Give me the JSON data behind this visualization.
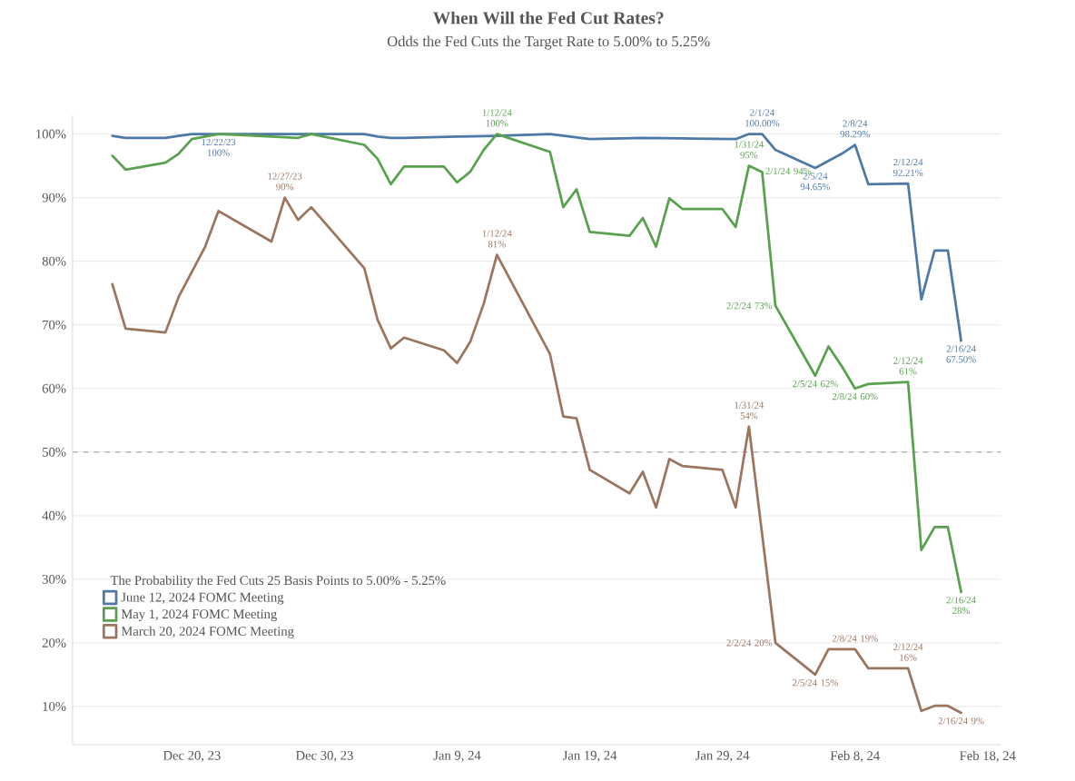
{
  "chart_data": {
    "type": "line",
    "title": "When Will the Fed Cut Rates?",
    "subtitle": "Odds the Fed Cuts the Target Rate to 5.00% to 5.25%",
    "legend_title": "The Probability the Fed Cuts 25 Basis Points to 5.00% - 5.25%",
    "legend": "bottom left",
    "grid": "y",
    "xlim": [
      "2023-12-11",
      "2024-02-19"
    ],
    "xticks": [
      {
        "value": "2023-12-20",
        "label": "Dec 20, 23"
      },
      {
        "value": "2023-12-30",
        "label": "Dec 30, 23"
      },
      {
        "value": "2024-01-09",
        "label": "Jan 9, 24"
      },
      {
        "value": "2024-01-19",
        "label": "Jan 19, 24"
      },
      {
        "value": "2024-01-29",
        "label": "Jan 29, 24"
      },
      {
        "value": "2024-02-08",
        "label": "Feb 8, 24"
      },
      {
        "value": "2024-02-18",
        "label": "Feb 18, 24"
      }
    ],
    "ylim": [
      4,
      103
    ],
    "yticks": [
      {
        "value": 10,
        "label": "10%"
      },
      {
        "value": 20,
        "label": "20%"
      },
      {
        "value": 30,
        "label": "30%"
      },
      {
        "value": 40,
        "label": "40%"
      },
      {
        "value": 50,
        "label": "50%"
      },
      {
        "value": 60,
        "label": "60%"
      },
      {
        "value": 70,
        "label": "70%"
      },
      {
        "value": 80,
        "label": "80%"
      },
      {
        "value": 90,
        "label": "90%"
      },
      {
        "value": 100,
        "label": "100%"
      }
    ],
    "ref_lines": [
      {
        "axis": "y",
        "value": 50,
        "color": "#b8b8b8",
        "line_style": "dashed"
      }
    ],
    "annotations": [
      {
        "text": "2/1/24 100.00%",
        "x": "2024-02-01",
        "y": 100
      },
      {
        "text": "2/5/24 94.65%",
        "x": "2024-02-05",
        "y": 94.65
      },
      {
        "text": "2/8/24 98.29%",
        "x": "2024-02-08",
        "y": 98.29
      },
      {
        "text": "2/12/24 92.21%",
        "x": "2024-02-12",
        "y": 92.21
      },
      {
        "text": "2/16/24 67.50%",
        "x": "2024-02-16",
        "y": 67.5
      },
      {
        "text": "12/22/23 100%",
        "x": "2023-12-22",
        "y": 100
      },
      {
        "text": "1/12/24 100%",
        "x": "2024-01-12",
        "y": 100
      },
      {
        "text": "1/31/24 95%",
        "x": "2024-01-31",
        "y": 95
      },
      {
        "text": "2/1/24 94%",
        "x": "2024-02-01",
        "y": 94
      },
      {
        "text": "2/2/24 73%",
        "x": "2024-02-02",
        "y": 73
      },
      {
        "text": "2/5/24 62%",
        "x": "2024-02-05",
        "y": 62
      },
      {
        "text": "2/8/24 60%",
        "x": "2024-02-08",
        "y": 60
      },
      {
        "text": "2/12/24 61%",
        "x": "2024-02-12",
        "y": 61
      },
      {
        "text": "2/16/24 28%",
        "x": "2024-02-16",
        "y": 28
      },
      {
        "text": "12/27/23 90%",
        "x": "2023-12-27",
        "y": 90
      },
      {
        "text": "1/12/24 81%",
        "x": "2024-01-12",
        "y": 81
      },
      {
        "text": "1/31/24 54%",
        "x": "2024-01-31",
        "y": 54
      },
      {
        "text": "2/2/24 20%",
        "x": "2024-02-02",
        "y": 20
      },
      {
        "text": "2/5/24 15%",
        "x": "2024-02-05",
        "y": 15
      },
      {
        "text": "2/8/24 19%",
        "x": "2024-02-08",
        "y": 19
      },
      {
        "text": "2/12/24 16%",
        "x": "2024-02-12",
        "y": 16
      },
      {
        "text": "2/16/24 9%",
        "x": "2024-02-16",
        "y": 9
      }
    ],
    "series": [
      {
        "name": "June 12, 2024 FOMC Meeting",
        "color": "#4e79a7",
        "x": [
          "2023-12-14",
          "2023-12-15",
          "2023-12-18",
          "2023-12-19",
          "2023-12-20",
          "2023-12-22",
          "2023-12-29",
          "2024-01-02",
          "2024-01-03",
          "2024-01-04",
          "2024-01-05",
          "2024-01-09",
          "2024-01-12",
          "2024-01-16",
          "2024-01-19",
          "2024-01-23",
          "2024-01-26",
          "2024-01-30",
          "2024-01-31",
          "2024-02-01",
          "2024-02-02",
          "2024-02-05",
          "2024-02-07",
          "2024-02-08",
          "2024-02-09",
          "2024-02-12",
          "2024-02-13",
          "2024-02-14",
          "2024-02-15",
          "2024-02-16"
        ],
        "values": [
          99.7,
          99.4,
          99.4,
          99.7,
          100,
          100,
          100,
          100,
          99.6,
          99.4,
          99.4,
          99.6,
          99.7,
          100,
          99.2,
          99.4,
          99.3,
          99.2,
          100,
          100,
          97.5,
          94.65,
          96.9,
          98.29,
          92.1,
          92.21,
          74,
          81.7,
          81.7,
          67.5
        ]
      },
      {
        "name": "May 1, 2024 FOMC Meeting",
        "color": "#59a14f",
        "x": [
          "2023-12-14",
          "2023-12-15",
          "2023-12-18",
          "2023-12-19",
          "2023-12-20",
          "2023-12-22",
          "2023-12-28",
          "2023-12-29",
          "2024-01-02",
          "2024-01-03",
          "2024-01-04",
          "2024-01-05",
          "2024-01-08",
          "2024-01-09",
          "2024-01-10",
          "2024-01-11",
          "2024-01-12",
          "2024-01-16",
          "2024-01-17",
          "2024-01-18",
          "2024-01-19",
          "2024-01-22",
          "2024-01-23",
          "2024-01-24",
          "2024-01-25",
          "2024-01-26",
          "2024-01-29",
          "2024-01-30",
          "2024-01-31",
          "2024-02-01",
          "2024-02-02",
          "2024-02-05",
          "2024-02-06",
          "2024-02-07",
          "2024-02-08",
          "2024-02-09",
          "2024-02-12",
          "2024-02-13",
          "2024-02-14",
          "2024-02-15",
          "2024-02-16"
        ],
        "values": [
          96.6,
          94.4,
          95.5,
          96.9,
          99.2,
          100,
          99.4,
          100,
          98.3,
          96.1,
          92.1,
          94.9,
          94.9,
          92.4,
          94.1,
          97.5,
          100,
          97.2,
          88.5,
          91.3,
          84.6,
          84.0,
          86.8,
          82.3,
          89.9,
          88.2,
          88.2,
          85.4,
          95,
          94,
          73,
          62,
          66.6,
          63.5,
          60,
          60.7,
          61,
          34.6,
          38.2,
          38.2,
          28
        ]
      },
      {
        "name": "March 20, 2024 FOMC Meeting",
        "color": "#9c755f",
        "x": [
          "2023-12-14",
          "2023-12-15",
          "2023-12-18",
          "2023-12-19",
          "2023-12-21",
          "2023-12-22",
          "2023-12-26",
          "2023-12-27",
          "2023-12-28",
          "2023-12-29",
          "2024-01-02",
          "2024-01-03",
          "2024-01-04",
          "2024-01-05",
          "2024-01-08",
          "2024-01-09",
          "2024-01-10",
          "2024-01-11",
          "2024-01-12",
          "2024-01-16",
          "2024-01-17",
          "2024-01-18",
          "2024-01-19",
          "2024-01-22",
          "2024-01-23",
          "2024-01-24",
          "2024-01-25",
          "2024-01-26",
          "2024-01-29",
          "2024-01-30",
          "2024-01-31",
          "2024-02-02",
          "2024-02-05",
          "2024-02-06",
          "2024-02-07",
          "2024-02-08",
          "2024-02-09",
          "2024-02-12",
          "2024-02-13",
          "2024-02-14",
          "2024-02-15",
          "2024-02-16"
        ],
        "values": [
          76.4,
          69.4,
          68.8,
          74.4,
          82.3,
          87.9,
          83.1,
          90,
          86.5,
          88.5,
          78.9,
          70.8,
          66.3,
          68.0,
          66.0,
          64.0,
          67.4,
          73.3,
          81,
          65.4,
          55.6,
          55.3,
          47.2,
          43.5,
          46.9,
          41.3,
          48.9,
          47.8,
          47.2,
          41.3,
          54,
          20,
          15,
          19,
          19,
          19,
          16,
          16,
          9.3,
          10.1,
          10.1,
          9
        ]
      }
    ]
  }
}
